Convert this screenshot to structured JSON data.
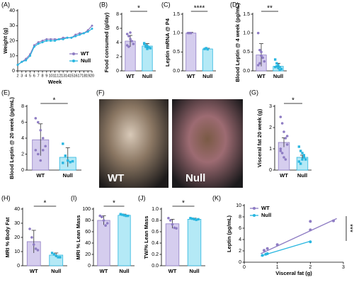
{
  "chart_data": [
    {
      "type": "line",
      "panel": "(A)",
      "ylabel": "Weight (g)",
      "xlabel": "Week",
      "x": [
        2,
        3,
        4,
        5,
        6,
        7,
        8,
        9,
        10,
        11,
        12,
        13,
        14,
        15,
        16,
        17,
        18,
        19,
        20
      ],
      "series": [
        {
          "name": "WT",
          "color": "#8e7cc3",
          "values": [
            4,
            6,
            8,
            11,
            17,
            19,
            20,
            21,
            21,
            21,
            21,
            22,
            22,
            22,
            24,
            25,
            25,
            27,
            30
          ]
        },
        {
          "name": "Null",
          "color": "#29b6e0",
          "values": [
            4,
            6,
            7,
            10,
            16,
            18,
            19,
            20,
            20,
            20,
            21,
            21,
            22,
            22,
            23,
            24,
            25,
            26,
            28
          ]
        }
      ],
      "xlim": [
        2,
        20
      ],
      "xticks": [
        2,
        3,
        4,
        5,
        6,
        7,
        8,
        9,
        10,
        11,
        12,
        13,
        14,
        15,
        16,
        17,
        18,
        19,
        20
      ],
      "ylim": [
        0,
        40
      ],
      "yticks": [
        0,
        10,
        20,
        30,
        40
      ],
      "legend": "lower right"
    },
    {
      "type": "bar",
      "panel": "(B)",
      "ylabel": "Food consumed (g/day)",
      "categories": [
        "WT",
        "Null"
      ],
      "values": [
        4.2,
        3.5
      ],
      "errors": [
        0.8,
        0.35
      ],
      "points": [
        [
          5.2,
          4.9,
          4.5,
          4.2,
          3.8,
          3.6,
          3.4,
          5.4
        ],
        [
          3.8,
          3.6,
          3.5,
          3.3,
          3.2,
          3.9,
          3.4,
          3.1
        ]
      ],
      "colors": [
        "#8e7cc3",
        "#29b6e0"
      ],
      "fills": [
        "#d5cdee",
        "#b4e9f6"
      ],
      "ylim": [
        0,
        8
      ],
      "yticks": [
        0,
        2,
        4,
        6,
        8
      ],
      "significance": "*"
    },
    {
      "type": "bar",
      "panel": "(C)",
      "ylabel": "Leptin mRNA @ P4",
      "categories": [
        "WT",
        "Null"
      ],
      "values": [
        1.0,
        0.58
      ],
      "errors": [
        0.02,
        0.02
      ],
      "points": [
        [
          1.0,
          1.0,
          1.0
        ],
        [
          0.58,
          0.6,
          0.57
        ]
      ],
      "colors": [
        "#8e7cc3",
        "#29b6e0"
      ],
      "fills": [
        "#d5cdee",
        "#b4e9f6"
      ],
      "ylim": [
        0,
        1.5
      ],
      "yticks": [
        {
          "value": 0,
          "label": "0.0"
        },
        0.5,
        {
          "value": 1,
          "label": "1.0"
        },
        1.5
      ],
      "significance": "****"
    },
    {
      "type": "bar",
      "panel": "(D)",
      "ylabel": "Blood Leptin @ 4 week (pg/mL)",
      "categories": [
        "WT",
        "Null"
      ],
      "values": [
        0.42,
        0.12
      ],
      "errors": [
        0.3,
        0.08
      ],
      "points": [
        [
          1.0,
          0.55,
          0.5,
          0.35,
          0.25,
          0.15,
          0.2,
          0.4
        ],
        [
          0.3,
          0.2,
          0.15,
          0.1,
          0.05,
          0.1,
          0.12,
          0.08,
          0.02
        ]
      ],
      "colors": [
        "#8e7cc3",
        "#29b6e0"
      ],
      "fills": [
        "#d5cdee",
        "#b4e9f6"
      ],
      "ylim": [
        0,
        1.5
      ],
      "yticks": [
        {
          "value": 0,
          "label": "0.0"
        },
        0.5,
        {
          "value": 1,
          "label": "1.0"
        },
        1.5
      ],
      "significance": "**"
    },
    {
      "type": "bar",
      "panel": "(E)",
      "ylabel": "Blood Leptin @ 20 week (pg/mL)",
      "categories": [
        "WT",
        "Null"
      ],
      "values": [
        3.8,
        1.6
      ],
      "errors": [
        2.0,
        1.2
      ],
      "points": [
        [
          6.5,
          6,
          5,
          4,
          3,
          2.5,
          2,
          1.2,
          2.5
        ],
        [
          3.3,
          1.8,
          1.2,
          1.0,
          1.1,
          0.9
        ]
      ],
      "colors": [
        "#8e7cc3",
        "#29b6e0"
      ],
      "fills": [
        "#d5cdee",
        "#b4e9f6"
      ],
      "ylim": [
        0,
        8
      ],
      "yticks": [
        0,
        2,
        4,
        6,
        8
      ],
      "significance": "*"
    },
    {
      "type": "bar",
      "panel": "(G)",
      "ylabel": "Visceral fat 20 week (g)",
      "categories": [
        "WT",
        "Null"
      ],
      "values": [
        1.3,
        0.6
      ],
      "errors": [
        0.22,
        0.1
      ],
      "points": [
        [
          2.5,
          2.2,
          1.8,
          1.5,
          1.2,
          1.0,
          0.8,
          0.6,
          0.5,
          1.6,
          0.9
        ],
        [
          1.1,
          0.9,
          0.8,
          0.6,
          0.5,
          0.4,
          0.3,
          0.5,
          0.7
        ]
      ],
      "colors": [
        "#8e7cc3",
        "#29b6e0"
      ],
      "fills": [
        "#d5cdee",
        "#b4e9f6"
      ],
      "ylim": [
        0,
        3
      ],
      "yticks": [
        0,
        1,
        2,
        3
      ],
      "significance": "*"
    },
    {
      "type": "bar",
      "panel": "(H)",
      "ylabel": "MRI % Body Fat",
      "categories": [
        "WT",
        "Null"
      ],
      "values": [
        17,
        7.5
      ],
      "errors": [
        8,
        1.5
      ],
      "points": [
        [
          26,
          20,
          15,
          12,
          11
        ],
        [
          9,
          8,
          7,
          6,
          6
        ]
      ],
      "colors": [
        "#8e7cc3",
        "#29b6e0"
      ],
      "fills": [
        "#d5cdee",
        "#b4e9f6"
      ],
      "ylim": [
        0,
        40
      ],
      "yticks": [
        0,
        10,
        20,
        30,
        40
      ],
      "significance": "*"
    },
    {
      "type": "bar",
      "panel": "(I)",
      "ylabel": "MRI % Lean Mass",
      "categories": [
        "WT",
        "Null"
      ],
      "values": [
        80,
        89
      ],
      "errors": [
        8,
        2
      ],
      "points": [
        [
          88,
          86,
          80,
          71,
          75
        ],
        [
          91,
          90,
          89,
          88,
          88
        ]
      ],
      "colors": [
        "#8e7cc3",
        "#29b6e0"
      ],
      "fills": [
        "#d5cdee",
        "#b4e9f6"
      ],
      "ylim": [
        0,
        100
      ],
      "yticks": [
        0,
        20,
        40,
        60,
        80,
        100
      ],
      "significance": "*"
    },
    {
      "type": "bar",
      "panel": "(J)",
      "ylabel": "TW/% Lean Mass",
      "categories": [
        "WT",
        "Null"
      ],
      "values": [
        0.74,
        0.82
      ],
      "errors": [
        0.08,
        0.02
      ],
      "points": [
        [
          0.84,
          0.8,
          0.73,
          0.67,
          0.66
        ],
        [
          0.84,
          0.83,
          0.82,
          0.81,
          0.82
        ]
      ],
      "colors": [
        "#8e7cc3",
        "#29b6e0"
      ],
      "fills": [
        "#d5cdee",
        "#b4e9f6"
      ],
      "ylim": [
        0,
        1
      ],
      "yticks": [
        {
          "value": 0,
          "label": "0.0"
        },
        0.2,
        0.4,
        0.6,
        0.8,
        {
          "value": 1,
          "label": "1.0"
        }
      ],
      "significance": "*"
    },
    {
      "type": "scatter",
      "panel": "(K)",
      "ylabel": "Leptin (pg/mL)",
      "xlabel": "Visceral fat (g)",
      "series": [
        {
          "name": "WT",
          "color": "#8e7cc3",
          "x": [
            0.6,
            0.7,
            1.0,
            2.0,
            2.0,
            2.7
          ],
          "values": [
            2.1,
            2.4,
            3.1,
            5.7,
            7.2,
            7.3
          ],
          "fit_x": [
            0.5,
            2.8
          ],
          "fit_y": [
            1.5,
            7.7
          ]
        },
        {
          "name": "Null",
          "color": "#29b6e0",
          "x": [
            0.55,
            0.65,
            0.7,
            2.0
          ],
          "values": [
            1.2,
            1.4,
            1.5,
            3.6
          ],
          "fit_x": [
            0.5,
            2.0
          ],
          "fit_y": [
            1.1,
            3.7
          ]
        }
      ],
      "xlim": [
        0,
        3
      ],
      "xticks": [
        0,
        1,
        2,
        3
      ],
      "ylim": [
        0,
        10
      ],
      "yticks": [
        0,
        2,
        4,
        6,
        8,
        10
      ],
      "legend": "upper left",
      "significance": "***"
    }
  ],
  "photo": {
    "panel": "(F)",
    "labels": [
      "WT",
      "Null"
    ]
  }
}
